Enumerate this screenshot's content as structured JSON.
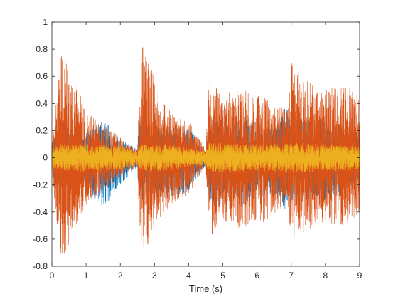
{
  "chart_data": {
    "type": "line",
    "title": "",
    "xlabel": "Time (s)",
    "ylabel": "",
    "xlim": [
      0,
      9
    ],
    "ylim": [
      -0.8,
      1
    ],
    "x_ticks": [
      "0",
      "1",
      "2",
      "3",
      "4",
      "5",
      "6",
      "7",
      "8",
      "9"
    ],
    "y_ticks": [
      "1",
      "0.8",
      "0.6",
      "0.4",
      "0.2",
      "0",
      "-0.2",
      "-0.4",
      "-0.6",
      "-0.8"
    ],
    "grid": false,
    "legend": "none",
    "colors": [
      "#0072BD",
      "#D95319",
      "#EDB120"
    ],
    "note_sampling": "waveform envelope read off the plot (peak amplitude vs time)",
    "series": [
      {
        "color": "#0072BD",
        "envelope": {
          "x": [
            0.0,
            0.25,
            0.5,
            1.0,
            1.5,
            2.0,
            2.5,
            2.55,
            2.75,
            3.0,
            3.5,
            4.0,
            4.5,
            4.6,
            4.8,
            5.2,
            5.6,
            6.0,
            6.5,
            6.9,
            7.2,
            7.6,
            8.0,
            8.5,
            9.0
          ],
          "upper": [
            0.12,
            0.25,
            0.22,
            0.2,
            0.28,
            0.14,
            0.07,
            0.3,
            0.28,
            0.22,
            0.24,
            0.22,
            0.05,
            0.3,
            0.28,
            0.25,
            0.32,
            0.26,
            0.24,
            0.36,
            0.3,
            0.28,
            0.3,
            0.25,
            0.18
          ],
          "lower": [
            -0.12,
            -0.28,
            -0.25,
            -0.22,
            -0.38,
            -0.2,
            -0.07,
            -0.36,
            -0.32,
            -0.3,
            -0.3,
            -0.26,
            -0.05,
            -0.34,
            -0.4,
            -0.28,
            -0.35,
            -0.3,
            -0.28,
            -0.4,
            -0.34,
            -0.3,
            -0.32,
            -0.28,
            -0.18
          ]
        }
      },
      {
        "color": "#D95319",
        "envelope": {
          "x": [
            0.0,
            0.25,
            0.4,
            0.7,
            1.0,
            1.5,
            2.0,
            2.5,
            2.55,
            2.65,
            2.9,
            3.2,
            3.6,
            4.0,
            4.5,
            4.6,
            4.7,
            5.0,
            5.4,
            5.8,
            6.2,
            6.6,
            6.9,
            7.0,
            7.4,
            7.8,
            8.2,
            8.6,
            9.0
          ],
          "upper": [
            0.1,
            0.76,
            0.72,
            0.55,
            0.35,
            0.25,
            0.15,
            0.06,
            0.45,
            0.82,
            0.7,
            0.45,
            0.3,
            0.28,
            0.06,
            0.62,
            0.55,
            0.45,
            0.52,
            0.48,
            0.46,
            0.38,
            0.35,
            0.7,
            0.58,
            0.5,
            0.52,
            0.55,
            0.45
          ],
          "lower": [
            -0.1,
            -0.76,
            -0.7,
            -0.5,
            -0.35,
            -0.25,
            -0.15,
            -0.06,
            -0.45,
            -0.75,
            -0.62,
            -0.42,
            -0.32,
            -0.28,
            -0.06,
            -0.58,
            -0.56,
            -0.46,
            -0.52,
            -0.5,
            -0.48,
            -0.4,
            -0.35,
            -0.6,
            -0.55,
            -0.48,
            -0.5,
            -0.5,
            -0.4
          ]
        }
      },
      {
        "color": "#EDB120",
        "envelope": {
          "x": [
            0.0,
            0.25,
            1.0,
            2.0,
            2.5,
            2.55,
            3.5,
            4.5,
            4.6,
            5.5,
            6.5,
            7.0,
            8.0,
            9.0
          ],
          "upper": [
            0.08,
            0.1,
            0.1,
            0.09,
            0.05,
            0.1,
            0.1,
            0.05,
            0.11,
            0.1,
            0.1,
            0.11,
            0.1,
            0.09
          ],
          "lower": [
            -0.08,
            -0.1,
            -0.1,
            -0.09,
            -0.05,
            -0.1,
            -0.1,
            -0.05,
            -0.11,
            -0.1,
            -0.1,
            -0.11,
            -0.1,
            -0.09
          ]
        }
      }
    ]
  }
}
